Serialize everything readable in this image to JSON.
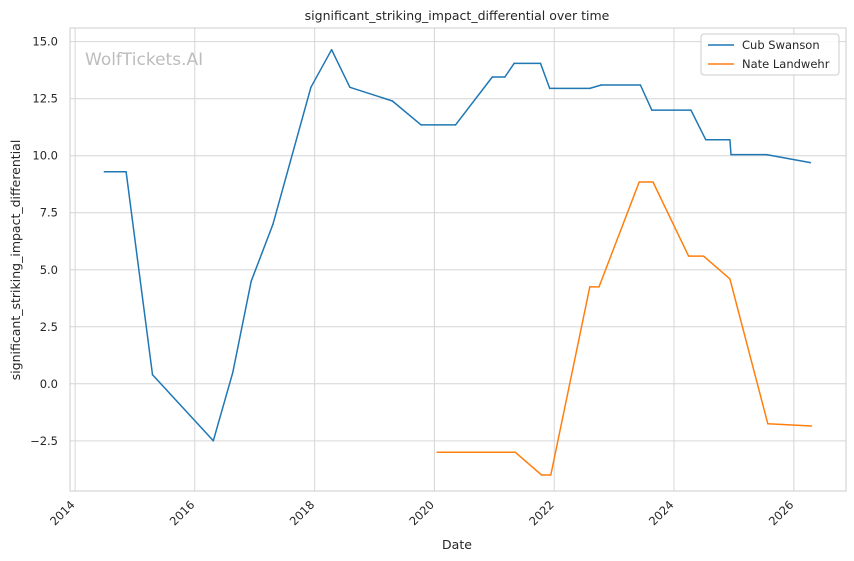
{
  "watermark": "WolfTickets.AI",
  "chart_data": {
    "type": "line",
    "title": "significant_striking_impact_differential over time",
    "xlabel": "Date",
    "ylabel": "significant_striking_impact_differential",
    "x_ticks": [
      "2014",
      "2016",
      "2018",
      "2020",
      "2022",
      "2024",
      "2026"
    ],
    "y_ticks": [
      "−2.5",
      "0.0",
      "2.5",
      "5.0",
      "7.5",
      "10.0",
      "12.5",
      "15.0"
    ],
    "y_tick_values": [
      -2.5,
      0.0,
      2.5,
      5.0,
      7.5,
      10.0,
      12.5,
      15.0
    ],
    "xlim": [
      "2013-12-01",
      "2026-11-15"
    ],
    "ylim": [
      -4.7,
      15.6
    ],
    "grid": true,
    "legend_position": "top-right",
    "series": [
      {
        "name": "Cub Swanson",
        "color": "#1f77b4",
        "points": [
          [
            "2014-06-28",
            9.3
          ],
          [
            "2014-11-08",
            9.3
          ],
          [
            "2015-04-18",
            0.4
          ],
          [
            "2016-04-23",
            -2.5
          ],
          [
            "2016-08-20",
            0.5
          ],
          [
            "2016-12-10",
            4.5
          ],
          [
            "2017-04-22",
            7.0
          ],
          [
            "2017-12-09",
            13.0
          ],
          [
            "2018-04-14",
            14.65
          ],
          [
            "2018-08-04",
            13.0
          ],
          [
            "2019-04-20",
            12.4
          ],
          [
            "2019-10-12",
            11.35
          ],
          [
            "2020-05-09",
            11.35
          ],
          [
            "2020-12-19",
            13.45
          ],
          [
            "2021-03-06",
            13.45
          ],
          [
            "2021-05-01",
            14.05
          ],
          [
            "2021-10-09",
            14.05
          ],
          [
            "2021-12-04",
            12.95
          ],
          [
            "2022-08-06",
            12.95
          ],
          [
            "2022-10-15",
            13.1
          ],
          [
            "2023-06-10",
            13.1
          ],
          [
            "2023-08-19",
            12.0
          ],
          [
            "2024-04-13",
            12.0
          ],
          [
            "2024-07-13",
            10.7
          ],
          [
            "2024-12-07",
            10.7
          ],
          [
            "2024-12-14",
            10.05
          ],
          [
            "2025-07-19",
            10.05
          ],
          [
            "2026-04-11",
            9.7
          ]
        ]
      },
      {
        "name": "Nate Landwehr",
        "color": "#ff7f0e",
        "points": [
          [
            "2020-01-18",
            -3.0
          ],
          [
            "2021-05-08",
            -3.0
          ],
          [
            "2021-10-16",
            -4.0
          ],
          [
            "2021-12-11",
            -4.0
          ],
          [
            "2022-08-06",
            4.25
          ],
          [
            "2022-10-01",
            4.25
          ],
          [
            "2023-06-03",
            8.85
          ],
          [
            "2023-08-26",
            8.85
          ],
          [
            "2024-03-30",
            5.6
          ],
          [
            "2024-06-29",
            5.6
          ],
          [
            "2024-12-07",
            4.6
          ],
          [
            "2025-07-26",
            -1.75
          ],
          [
            "2026-04-18",
            -1.85
          ]
        ]
      }
    ]
  }
}
